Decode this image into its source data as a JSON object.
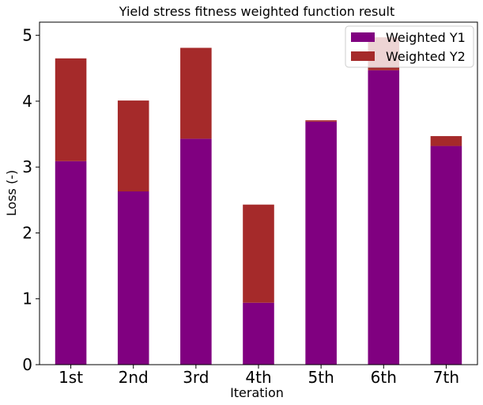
{
  "chart_data": {
    "type": "bar",
    "stacked": true,
    "title": "Yield stress fitness weighted function result",
    "xlabel": "Iteration",
    "ylabel": "Loss (-)",
    "categories": [
      "1st",
      "2nd",
      "3rd",
      "4th",
      "5th",
      "6th",
      "7th"
    ],
    "ylim": [
      0,
      5.2
    ],
    "yticks": [
      "0",
      "1",
      "2",
      "3",
      "4",
      "5"
    ],
    "grid": false,
    "legend": {
      "placement": "top-right"
    },
    "series": [
      {
        "name": "Weighted Y1",
        "color": "#800080",
        "values": [
          3.09,
          2.63,
          3.43,
          0.94,
          3.69,
          4.47,
          3.32
        ]
      },
      {
        "name": "Weighted Y2",
        "color": "#a52a2a",
        "values": [
          1.56,
          1.38,
          1.38,
          1.49,
          0.02,
          0.5,
          0.15
        ]
      }
    ]
  }
}
